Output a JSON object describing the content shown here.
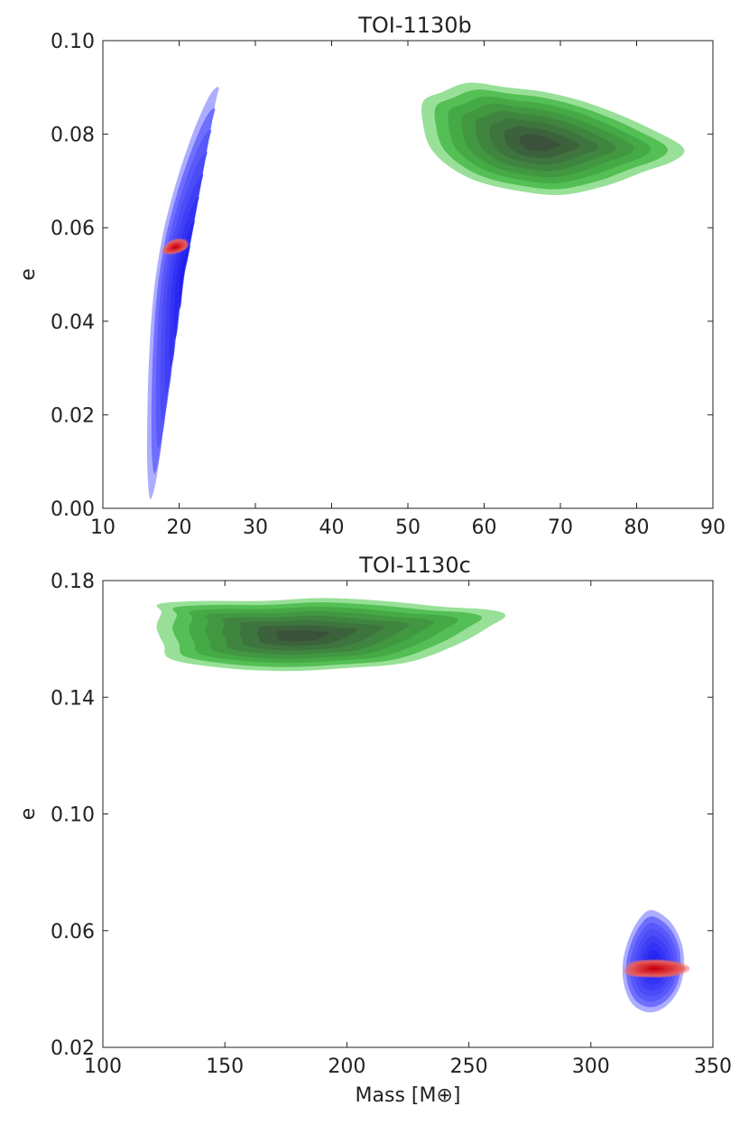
{
  "chart_data": [
    {
      "type": "contour",
      "title": "TOI-1130b",
      "xlabel": "",
      "ylabel": "e",
      "xlim": [
        10,
        90
      ],
      "ylim": [
        0.0,
        0.1
      ],
      "xticks": [
        10,
        20,
        30,
        40,
        50,
        60,
        70,
        80,
        90
      ],
      "xtick_labels": [
        "10",
        "20",
        "30",
        "40",
        "50",
        "60",
        "70",
        "80",
        "90"
      ],
      "yticks": [
        0.0,
        0.02,
        0.04,
        0.06,
        0.08,
        0.1
      ],
      "ytick_labels": [
        "0.00",
        "0.02",
        "0.04",
        "0.06",
        "0.08",
        "0.10"
      ],
      "grid": false,
      "distributions": [
        {
          "color": "#6a6aff",
          "peak_color": "#1a1aee",
          "center": [
            20.8,
            0.05
          ],
          "outer_contour": [
            [
              16.3,
              0.002
            ],
            [
              17.2,
              0.008
            ],
            [
              18.0,
              0.02
            ],
            [
              19.0,
              0.035
            ],
            [
              20.2,
              0.05
            ],
            [
              21.4,
              0.06
            ],
            [
              22.8,
              0.07
            ],
            [
              24.0,
              0.08
            ],
            [
              24.8,
              0.087
            ],
            [
              25.2,
              0.09
            ],
            [
              24.3,
              0.089
            ],
            [
              23.0,
              0.085
            ],
            [
              21.3,
              0.078
            ],
            [
              19.5,
              0.069
            ],
            [
              17.8,
              0.058
            ],
            [
              16.6,
              0.045
            ],
            [
              16.0,
              0.03
            ],
            [
              15.8,
              0.015
            ],
            [
              15.9,
              0.006
            ]
          ]
        },
        {
          "color": "#44c744",
          "peak_color": "#3b4d3b",
          "center": [
            67.0,
            0.078
          ],
          "outer_contour": [
            [
              52.0,
              0.087
            ],
            [
              54.5,
              0.089
            ],
            [
              58.0,
              0.091
            ],
            [
              63.0,
              0.09
            ],
            [
              68.0,
              0.089
            ],
            [
              73.0,
              0.087
            ],
            [
              78.0,
              0.084
            ],
            [
              82.0,
              0.081
            ],
            [
              85.5,
              0.078
            ],
            [
              86.2,
              0.076
            ],
            [
              84.5,
              0.074
            ],
            [
              81.0,
              0.072
            ],
            [
              76.0,
              0.069
            ],
            [
              70.0,
              0.067
            ],
            [
              64.0,
              0.068
            ],
            [
              59.0,
              0.07
            ],
            [
              55.5,
              0.073
            ],
            [
              53.0,
              0.077
            ],
            [
              52.0,
              0.082
            ]
          ]
        },
        {
          "color": "#f0706a",
          "peak_color": "#c80010",
          "center": [
            19.5,
            0.0558
          ],
          "outer_contour": [
            [
              17.8,
              0.0548
            ],
            [
              18.3,
              0.0565
            ],
            [
              19.3,
              0.0575
            ],
            [
              20.6,
              0.0576
            ],
            [
              21.2,
              0.0568
            ],
            [
              21.0,
              0.0556
            ],
            [
              20.0,
              0.0547
            ],
            [
              18.8,
              0.0543
            ]
          ]
        }
      ]
    },
    {
      "type": "contour",
      "title": "TOI-1130c",
      "xlabel": "Mass [M⊕]",
      "ylabel": "e",
      "xlim": [
        100,
        350
      ],
      "ylim": [
        0.02,
        0.18
      ],
      "xticks": [
        100,
        150,
        200,
        250,
        300,
        350
      ],
      "xtick_labels": [
        "100",
        "150",
        "200",
        "250",
        "300",
        "350"
      ],
      "yticks": [
        0.02,
        0.06,
        0.1,
        0.14,
        0.18
      ],
      "ytick_labels": [
        "0.02",
        "0.06",
        "0.10",
        "0.14",
        "0.18"
      ],
      "grid": false,
      "distributions": [
        {
          "color": "#44c744",
          "peak_color": "#3b4d3b",
          "center": [
            180.0,
            0.161
          ],
          "outer_contour": [
            [
              123.0,
              0.172
            ],
            [
              140.0,
              0.173
            ],
            [
              165.0,
              0.173
            ],
            [
              190.0,
              0.174
            ],
            [
              215.0,
              0.173
            ],
            [
              240.0,
              0.171
            ],
            [
              258.0,
              0.17
            ],
            [
              265.0,
              0.168
            ],
            [
              258.0,
              0.164
            ],
            [
              245.0,
              0.158
            ],
            [
              225.0,
              0.152
            ],
            [
              200.0,
              0.15
            ],
            [
              175.0,
              0.149
            ],
            [
              150.0,
              0.15
            ],
            [
              128.0,
              0.153
            ],
            [
              125.0,
              0.158
            ],
            [
              122.0,
              0.164
            ],
            [
              124.0,
              0.169
            ]
          ]
        },
        {
          "color": "#6a6aff",
          "peak_color": "#1a1aee",
          "center": [
            326.0,
            0.048
          ],
          "outer_contour": [
            [
              324.0,
              0.067
            ],
            [
              330.0,
              0.065
            ],
            [
              335.0,
              0.06
            ],
            [
              338.0,
              0.052
            ],
            [
              337.0,
              0.042
            ],
            [
              332.0,
              0.035
            ],
            [
              325.0,
              0.032
            ],
            [
              318.0,
              0.034
            ],
            [
              314.0,
              0.04
            ],
            [
              313.0,
              0.048
            ],
            [
              315.0,
              0.056
            ],
            [
              319.0,
              0.063
            ]
          ]
        },
        {
          "color": "#f0706a",
          "peak_color": "#c80010",
          "center": [
            326.0,
            0.047
          ],
          "outer_contour": [
            [
              313.5,
              0.046
            ],
            [
              316.0,
              0.049
            ],
            [
              322.0,
              0.05
            ],
            [
              330.0,
              0.05
            ],
            [
              337.0,
              0.049
            ],
            [
              340.5,
              0.047
            ],
            [
              337.0,
              0.045
            ],
            [
              330.0,
              0.044
            ],
            [
              322.0,
              0.044
            ],
            [
              316.0,
              0.0445
            ]
          ]
        }
      ]
    }
  ]
}
